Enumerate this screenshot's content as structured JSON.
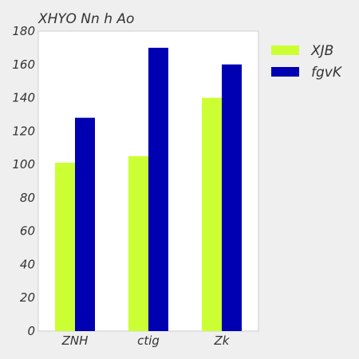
{
  "chart_data": {
    "type": "bar",
    "title": "XHYO Nn h Ao",
    "categories": [
      "ZNH",
      "ctig",
      "Zk"
    ],
    "series": [
      {
        "name": "XJB",
        "color": "#ccff33",
        "values": [
          101,
          105,
          140
        ]
      },
      {
        "name": "fgvK",
        "color": "#0000b3",
        "values": [
          128,
          170,
          160
        ]
      }
    ],
    "ylim": [
      0,
      180
    ],
    "yticks": [
      0,
      20,
      40,
      60,
      80,
      100,
      120,
      140,
      160,
      180
    ],
    "xlabel": "",
    "ylabel": "",
    "grid": false,
    "legend_position": "right"
  }
}
